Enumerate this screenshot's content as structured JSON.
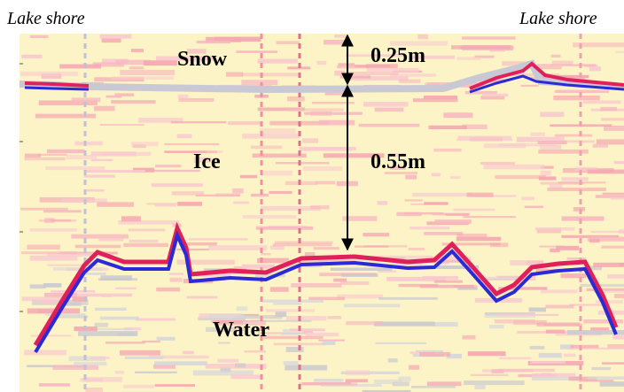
{
  "shore_labels": [
    "Lake shore",
    "Lake shore"
  ],
  "layers": [
    "Snow",
    "Ice",
    "Water"
  ],
  "thicknesses": [
    "0.25m",
    "0.55m"
  ]
}
